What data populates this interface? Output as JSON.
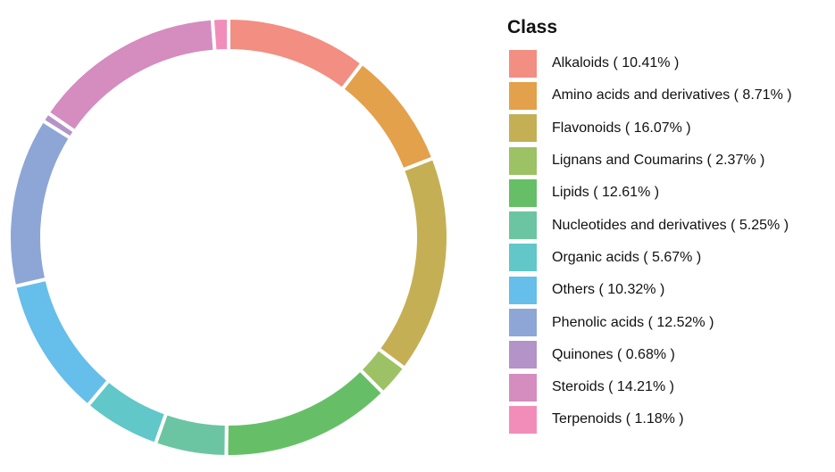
{
  "chart_data": {
    "type": "pie",
    "variant": "donut",
    "legend_title": "Class",
    "legend_position": "right",
    "slices": [
      {
        "label": "Alkaloids ( 10.41% )",
        "name": "Alkaloids",
        "value": 10.41,
        "color": "#F28E82"
      },
      {
        "label": "Amino acids and derivatives ( 8.71% )",
        "name": "Amino acids and derivatives",
        "value": 8.71,
        "color": "#E3A14B"
      },
      {
        "label": "Flavonoids ( 16.07% )",
        "name": "Flavonoids",
        "value": 16.07,
        "color": "#C5AF55"
      },
      {
        "label": "Lignans and Coumarins ( 2.37% )",
        "name": "Lignans and Coumarins",
        "value": 2.37,
        "color": "#9CC265"
      },
      {
        "label": "Lipids ( 12.61% )",
        "name": "Lipids",
        "value": 12.61,
        "color": "#66BF67"
      },
      {
        "label": "Nucleotides and derivatives ( 5.25% )",
        "name": "Nucleotides and derivatives",
        "value": 5.25,
        "color": "#6CC5A2"
      },
      {
        "label": "Organic acids ( 5.67% )",
        "name": "Organic acids",
        "value": 5.67,
        "color": "#62C7C9"
      },
      {
        "label": "Others ( 10.32% )",
        "name": "Others",
        "value": 10.32,
        "color": "#66BEEA"
      },
      {
        "label": "Phenolic acids ( 12.52% )",
        "name": "Phenolic acids",
        "value": 12.52,
        "color": "#8DA6D6"
      },
      {
        "label": "Quinones ( 0.68% )",
        "name": "Quinones",
        "value": 0.68,
        "color": "#B393C8"
      },
      {
        "label": "Steroids ( 14.21% )",
        "name": "Steroids",
        "value": 14.21,
        "color": "#D58CBF"
      },
      {
        "label": "Terpenoids ( 1.18% )",
        "name": "Terpenoids",
        "value": 1.18,
        "color": "#F28DBA"
      }
    ]
  }
}
